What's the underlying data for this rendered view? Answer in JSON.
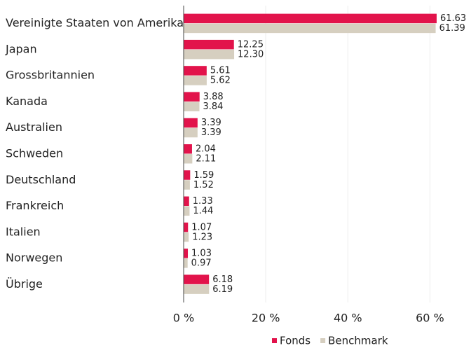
{
  "chart_data": {
    "type": "barh",
    "categories": [
      "Vereinigte Staaten von Amerika",
      "Japan",
      "Grossbritannien",
      "Kanada",
      "Australien",
      "Schweden",
      "Deutschland",
      "Frankreich",
      "Italien",
      "Norwegen",
      "Übrige"
    ],
    "series": [
      {
        "name": "Fonds",
        "color": "#e2134b",
        "values": [
          61.63,
          12.25,
          5.61,
          3.88,
          3.39,
          2.04,
          1.59,
          1.33,
          1.07,
          1.03,
          6.18
        ],
        "value_labels": [
          "61.63",
          "12.25",
          "5.61",
          "3.88",
          "3.39",
          "2.04",
          "1.59",
          "1.33",
          "1.07",
          "1.03",
          "6.18"
        ]
      },
      {
        "name": "Benchmark",
        "color": "#d6cfc0",
        "values": [
          61.39,
          12.3,
          5.62,
          3.84,
          3.39,
          2.11,
          1.52,
          1.44,
          1.23,
          0.97,
          6.19
        ],
        "value_labels": [
          "61.39",
          "12.30",
          "5.62",
          "3.84",
          "3.39",
          "2.11",
          "1.52",
          "1.44",
          "1.23",
          "0.97",
          "6.19"
        ]
      }
    ],
    "xlim": [
      0,
      70
    ],
    "xticks": [
      {
        "value": 0,
        "label": "0 %"
      },
      {
        "value": 20,
        "label": "20 %"
      },
      {
        "value": 40,
        "label": "40 %"
      },
      {
        "value": 60,
        "label": "60 %"
      }
    ],
    "grid": true,
    "legend": "bottom"
  }
}
